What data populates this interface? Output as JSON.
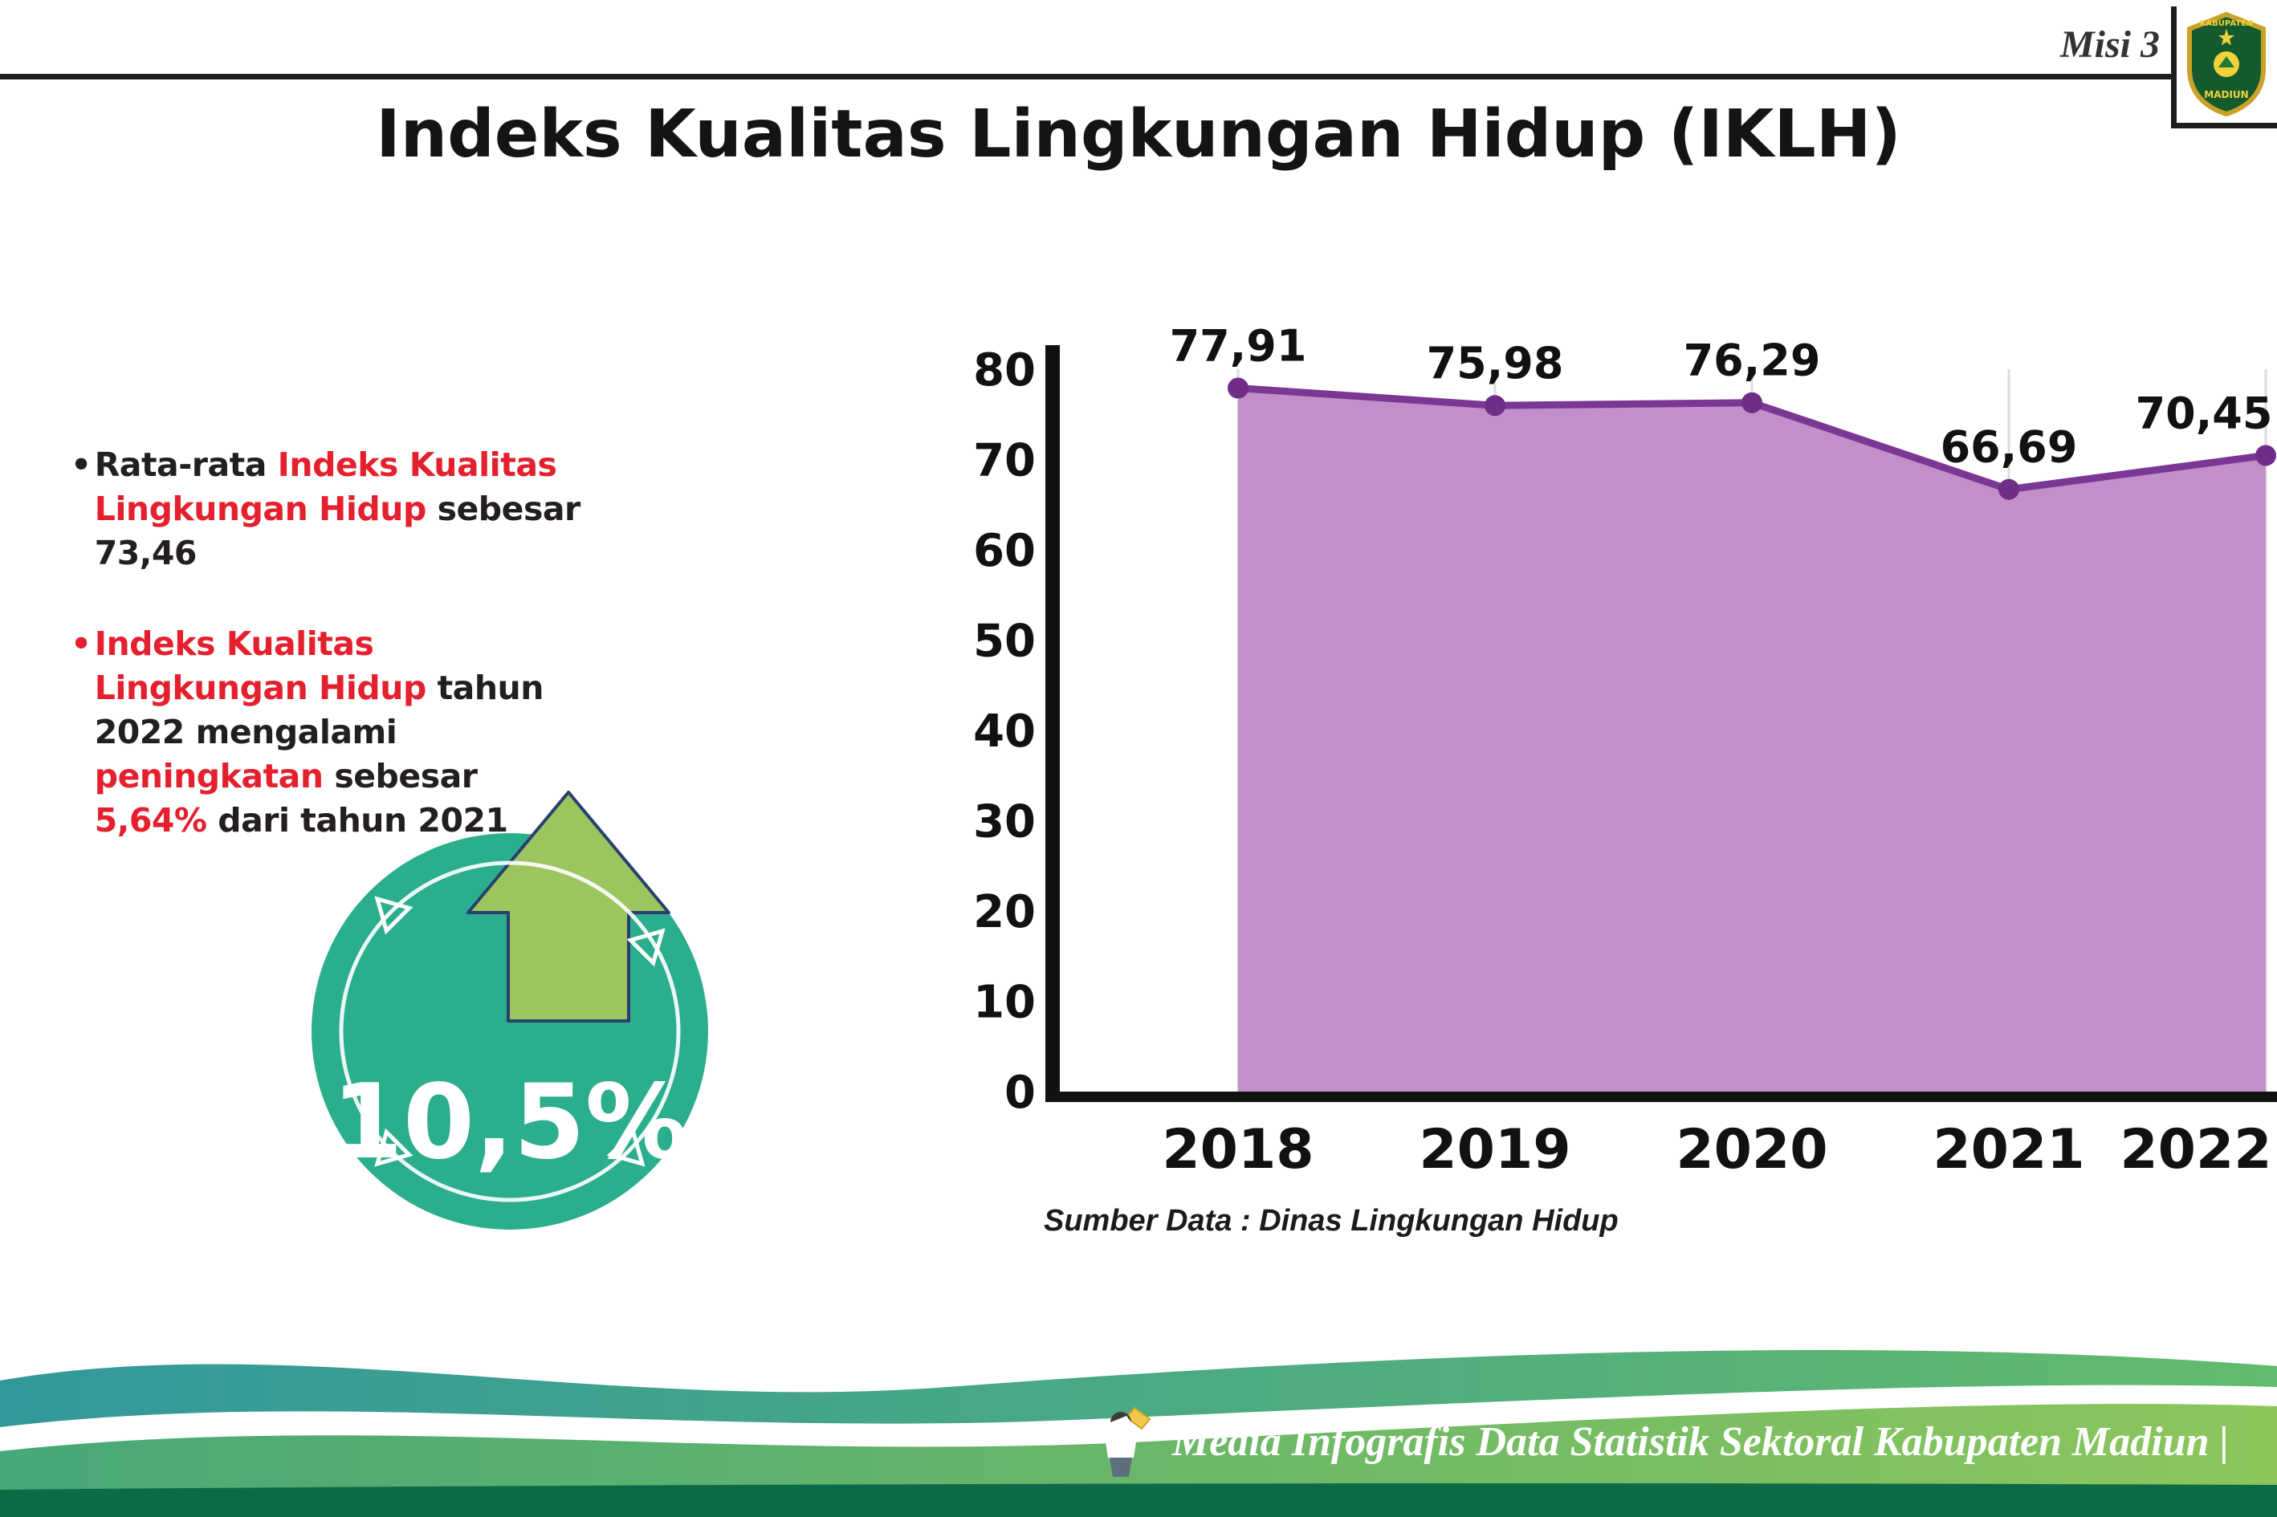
{
  "header": {
    "misi": "Misi 3",
    "title": "Indeks Kualitas Lingkungan Hidup (IKLH)"
  },
  "logo": {
    "kabupaten": "KABUPATEN",
    "madiun": "MADIUN"
  },
  "bullets": {
    "b1": {
      "marker": "•",
      "segments": [
        {
          "t": "Rata-rata ",
          "c": "dark"
        },
        {
          "t": "Indeks Kualitas Lingkungan Hidup",
          "c": "red"
        },
        {
          "t": " sebesar 73,46",
          "c": "dark"
        }
      ]
    },
    "b2": {
      "marker": "•",
      "segments": [
        {
          "t": "Indeks Kualitas Lingkungan Hidup",
          "c": "red"
        },
        {
          "t": " tahun 2022 mengalami ",
          "c": "dark"
        },
        {
          "t": "peningkatan",
          "c": "red"
        },
        {
          "t": " sebesar ",
          "c": "dark"
        },
        {
          "t": "5,64%",
          "c": "red"
        },
        {
          "t": " dari tahun 2021",
          "c": "dark"
        }
      ]
    }
  },
  "badge": {
    "value": "10,5%"
  },
  "chart_data": {
    "type": "area",
    "title": "Indeks Kualitas Lingkungan Hidup (IKLH)",
    "x": [
      "2018",
      "2019",
      "2020",
      "2021",
      "2022"
    ],
    "values": [
      77.91,
      75.98,
      76.29,
      66.69,
      70.45
    ],
    "point_labels": [
      "77,91",
      "75,98",
      "76,29",
      "66,69",
      "70,45"
    ],
    "ylim": [
      0,
      80
    ],
    "yticks": [
      0,
      10,
      20,
      30,
      40,
      50,
      60,
      70,
      80
    ],
    "grid": "vertical-light",
    "legend": "none",
    "source": "Sumber Data : Dinas Lingkungan Hidup",
    "colors": {
      "fill": "#C28FCB",
      "line": "#7B3794",
      "point": "#6E2D86",
      "axis": "#111111",
      "grid": "#DCDCDC"
    }
  },
  "footer": {
    "credit": "Media Infografis Data Statistik Sektoral Kabupaten Madiun |"
  },
  "theme": {
    "red": "#E5202E",
    "dark": "#231F20",
    "teal": "#2BAE8E",
    "arrow_green": "#9CC45F",
    "wave_teal": "#33989B",
    "wave_green": "#8CC65B",
    "wave_dark": "#0D6A46"
  }
}
